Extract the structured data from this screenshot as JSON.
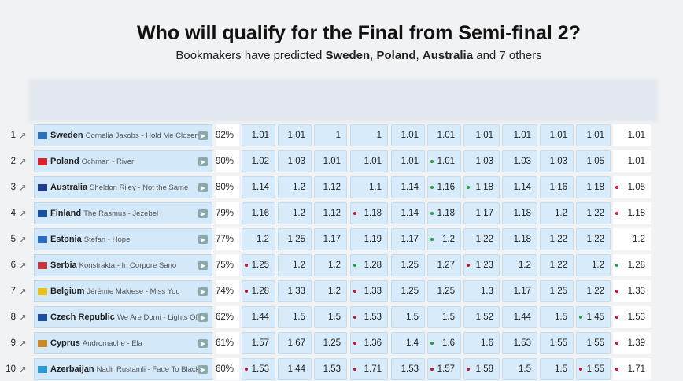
{
  "header": {
    "title": "Who will qualify for the Final from Semi-final 2?",
    "subtitle": [
      {
        "text": "Bookmakers have predicted ",
        "bold": false
      },
      {
        "text": "Sweden",
        "bold": true
      },
      {
        "text": ", ",
        "bold": false
      },
      {
        "text": "Poland",
        "bold": true
      },
      {
        "text": ", ",
        "bold": false
      },
      {
        "text": "Australia",
        "bold": true
      },
      {
        "text": " and 7 others",
        "bold": false
      }
    ]
  },
  "table": {
    "rows": [
      {
        "rank": "1",
        "country": "Sweden",
        "song": "Cornelia Jakobs - Hold Me Closer",
        "percent": "92%",
        "odds": [
          1.01,
          1.01,
          1,
          1,
          1.01,
          1.01,
          1.01,
          1.01,
          1.01,
          1.01
        ],
        "dots": [
          null,
          null,
          null,
          null,
          null,
          null,
          null,
          null,
          null,
          null
        ],
        "last": 1.01,
        "last_dot": null
      },
      {
        "rank": "2",
        "country": "Poland",
        "song": "Ochman - River",
        "percent": "90%",
        "odds": [
          1.02,
          1.03,
          1.01,
          1.01,
          1.01,
          1.01,
          1.03,
          1.03,
          1.03,
          1.05
        ],
        "dots": [
          null,
          null,
          null,
          null,
          null,
          "green",
          null,
          null,
          null,
          null
        ],
        "last": 1.01,
        "last_dot": null
      },
      {
        "rank": "3",
        "country": "Australia",
        "song": "Sheldon Riley - Not the Same",
        "percent": "80%",
        "odds": [
          1.14,
          1.2,
          1.12,
          1.1,
          1.14,
          1.16,
          1.18,
          1.14,
          1.16,
          1.18
        ],
        "dots": [
          null,
          null,
          null,
          null,
          null,
          "green",
          "green",
          null,
          null,
          null
        ],
        "last": 1.05,
        "last_dot": "red"
      },
      {
        "rank": "4",
        "country": "Finland",
        "song": "The Rasmus - Jezebel",
        "percent": "79%",
        "odds": [
          1.16,
          1.2,
          1.12,
          1.18,
          1.14,
          1.18,
          1.17,
          1.18,
          1.2,
          1.22
        ],
        "dots": [
          null,
          null,
          null,
          "red",
          null,
          "green",
          null,
          null,
          null,
          null
        ],
        "last": 1.18,
        "last_dot": "red"
      },
      {
        "rank": "5",
        "country": "Estonia",
        "song": "Stefan - Hope",
        "percent": "77%",
        "odds": [
          1.2,
          1.25,
          1.17,
          1.19,
          1.17,
          1.2,
          1.22,
          1.18,
          1.22,
          1.22
        ],
        "dots": [
          null,
          null,
          null,
          null,
          null,
          "green",
          null,
          null,
          null,
          null
        ],
        "last": 1.2,
        "last_dot": null
      },
      {
        "rank": "6",
        "country": "Serbia",
        "song": "Konstrakta - In Corpore Sano",
        "percent": "75%",
        "odds": [
          1.25,
          1.2,
          1.2,
          1.28,
          1.25,
          1.27,
          1.23,
          1.2,
          1.22,
          1.2
        ],
        "dots": [
          "red",
          null,
          null,
          "green",
          null,
          null,
          "red",
          null,
          null,
          null
        ],
        "last": 1.28,
        "last_dot": "green"
      },
      {
        "rank": "7",
        "country": "Belgium",
        "song": "Jérémie Makiese - Miss You",
        "percent": "74%",
        "odds": [
          1.28,
          1.33,
          1.2,
          1.33,
          1.25,
          1.25,
          1.3,
          1.17,
          1.25,
          1.22
        ],
        "dots": [
          "red",
          null,
          null,
          "red",
          null,
          null,
          null,
          null,
          null,
          null
        ],
        "last": 1.33,
        "last_dot": "red"
      },
      {
        "rank": "8",
        "country": "Czech Republic",
        "song": "We Are Domi - Lights Off",
        "percent": "62%",
        "odds": [
          1.44,
          1.5,
          1.5,
          1.53,
          1.5,
          1.5,
          1.52,
          1.44,
          1.5,
          1.45
        ],
        "dots": [
          null,
          null,
          null,
          "red",
          null,
          null,
          null,
          null,
          null,
          "green"
        ],
        "last": 1.53,
        "last_dot": "red"
      },
      {
        "rank": "9",
        "country": "Cyprus",
        "song": "Andromache - Ela",
        "percent": "61%",
        "odds": [
          1.57,
          1.67,
          1.25,
          1.36,
          1.4,
          1.6,
          1.6,
          1.53,
          1.55,
          1.55
        ],
        "dots": [
          null,
          null,
          null,
          "red",
          null,
          "green",
          null,
          null,
          null,
          null
        ],
        "last": 1.39,
        "last_dot": "red"
      },
      {
        "rank": "10",
        "country": "Azerbaijan",
        "song": "Nadir Rustamli - Fade To Black",
        "percent": "60%",
        "odds": [
          1.53,
          1.44,
          1.53,
          1.71,
          1.53,
          1.57,
          1.58,
          1.5,
          1.5,
          1.55
        ],
        "dots": [
          "red",
          null,
          null,
          "red",
          null,
          "red",
          "red",
          null,
          null,
          "red"
        ],
        "last": 1.71,
        "last_dot": "red"
      }
    ]
  }
}
